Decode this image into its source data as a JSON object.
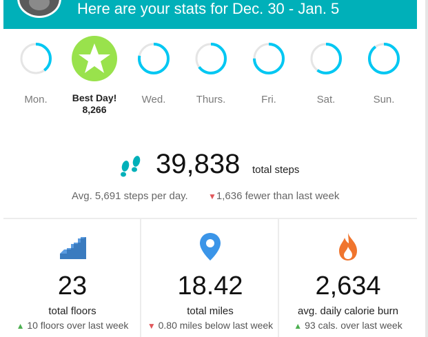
{
  "header": {
    "title": "Here are your stats for Dec. 30 - Jan. 5",
    "color": "#00b0b9"
  },
  "days": [
    {
      "label": "Mon.",
      "progress": 0.4,
      "color": "#00c7f2"
    },
    {
      "label": "Best Day!",
      "value": "8,266",
      "best": true,
      "color": "#99e24c"
    },
    {
      "label": "Wed.",
      "progress": 0.78,
      "color": "#00c7f2"
    },
    {
      "label": "Thurs.",
      "progress": 0.65,
      "color": "#00c7f2"
    },
    {
      "label": "Fri.",
      "progress": 0.75,
      "color": "#00c7f2"
    },
    {
      "label": "Sat.",
      "progress": 0.6,
      "color": "#00c7f2"
    },
    {
      "label": "Sun.",
      "progress": 0.9,
      "color": "#00c7f2"
    }
  ],
  "steps": {
    "total": "39,838",
    "unit": "total steps",
    "avg": "Avg. 5,691 steps per day.",
    "delta": "1,636 fewer than last week",
    "icon": "footprints-icon",
    "icon_color": "#00b0b9"
  },
  "metrics": [
    {
      "name": "floors",
      "icon": "stairs-icon",
      "value": "23",
      "label": "total floors",
      "delta": "10 floors over last week",
      "direction": "up",
      "color": "#3a7bbf"
    },
    {
      "name": "miles",
      "icon": "map-pin-icon",
      "value": "18.42",
      "label": "total miles",
      "delta": "0.80 miles below last week",
      "direction": "down",
      "color": "#3b95e8"
    },
    {
      "name": "calories",
      "icon": "flame-icon",
      "value": "2,634",
      "label": "avg. daily calorie burn",
      "delta": "93 cals. over last week",
      "direction": "up",
      "color": "#f0752e"
    }
  ]
}
